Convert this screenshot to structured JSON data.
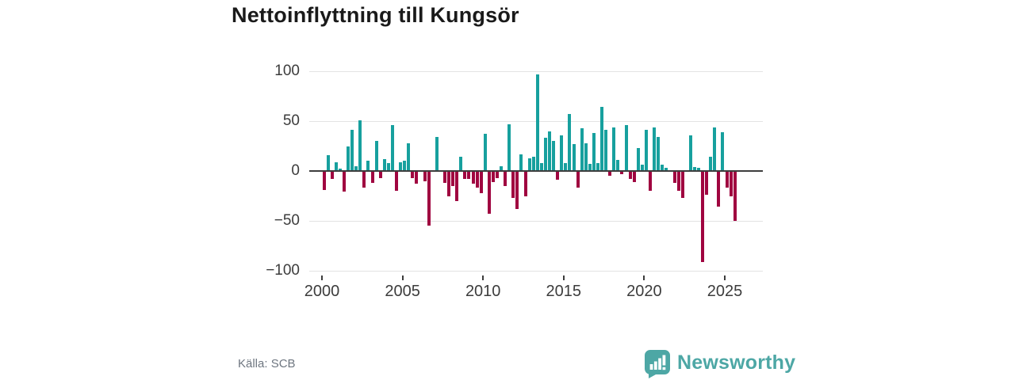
{
  "title": "Nettoinflyttning till Kungsör",
  "source_label": "Källa: SCB",
  "brand": {
    "name": "Newsworthy",
    "icon": "speech-bubble-bar-chart"
  },
  "colors": {
    "positive": "#17a09e",
    "negative": "#a00540",
    "grid": "#e3e3e3",
    "zero_line": "#3d3d3d",
    "axis_text": "#3c3c3c",
    "title_text": "#1a1a1a",
    "source_text": "#6e7680",
    "brand_teal": "#4da7a5",
    "background": "#ffffff"
  },
  "chart_data": {
    "type": "bar",
    "title": "Nettoinflyttning till Kungsör",
    "frequency": "quarterly",
    "start": "2000Q1",
    "end": "2025Q3",
    "ylim": [
      -100,
      100
    ],
    "grid": "horizontal",
    "y_ticks": [
      100,
      50,
      0,
      -50,
      -100
    ],
    "y_tick_labels": [
      "100",
      "50",
      "0",
      "−50",
      "−100"
    ],
    "x_ticks": [
      2000,
      2005,
      2010,
      2015,
      2020,
      2025
    ],
    "x_tick_labels": [
      "2000",
      "2005",
      "2010",
      "2015",
      "2020",
      "2025"
    ],
    "series": [
      {
        "name": "Nettoinflyttning",
        "values": [
          -19,
          16,
          -8,
          9,
          2,
          -21,
          25,
          41,
          5,
          51,
          -17,
          10,
          -12,
          30,
          -7,
          12,
          8,
          46,
          -20,
          9,
          10,
          28,
          -7,
          -13,
          1,
          -10,
          -55,
          -1,
          34,
          0,
          -12,
          -25,
          -15,
          -30,
          14,
          -8,
          -8,
          -13,
          -17,
          -22,
          37,
          -43,
          -11,
          -7,
          5,
          -15,
          47,
          -27,
          -38,
          17,
          -25,
          13,
          14,
          97,
          8,
          33,
          40,
          30,
          -9,
          36,
          8,
          57,
          27,
          -17,
          43,
          28,
          7,
          38,
          8,
          64,
          41,
          -5,
          44,
          11,
          -3,
          46,
          -8,
          -11,
          23,
          6,
          41,
          -20,
          44,
          34,
          6,
          3,
          0,
          -12,
          -20,
          -27,
          0,
          36,
          4,
          3,
          -91,
          -24,
          14,
          44,
          -36,
          39,
          -17,
          -25,
          -50
        ]
      }
    ]
  }
}
